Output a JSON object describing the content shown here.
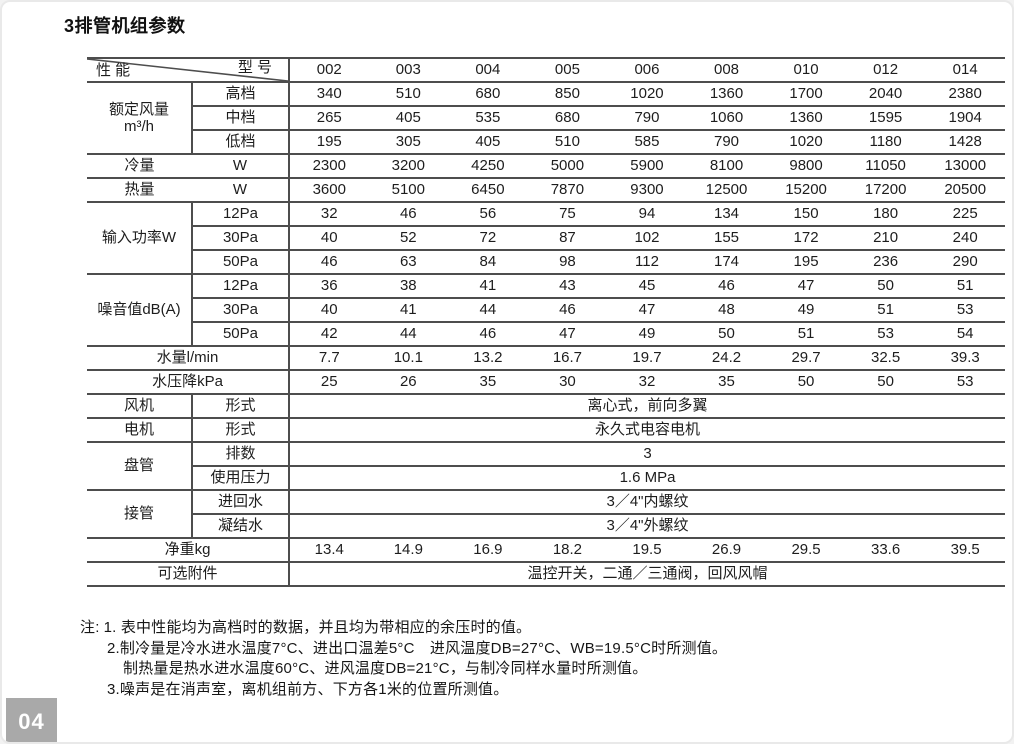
{
  "page": {
    "title": "3排管机组参数",
    "page_number": "04"
  },
  "colors": {
    "badge_bg": "#a9a9a9",
    "table_line": "#4d4d4d"
  },
  "table": {
    "corner": {
      "left": "性 能",
      "right": "型 号"
    },
    "models": [
      "002",
      "003",
      "004",
      "005",
      "006",
      "008",
      "010",
      "012",
      "014"
    ],
    "labels": {
      "airflow": "额定风量",
      "airflow_unit": "m³/h",
      "high": "高档",
      "mid": "中档",
      "low": "低档",
      "cooling": "冷量",
      "cooling_unit": "W",
      "heating": "热量",
      "heating_unit": "W",
      "input_power": "输入功率W",
      "power_pa12": "12Pa",
      "power_pa30": "30Pa",
      "power_pa50": "50Pa",
      "noise": "噪音值dB(A)",
      "noise_pa12": "12Pa",
      "noise_pa30": "30Pa",
      "noise_pa50": "50Pa",
      "water_flow": "水量l/min",
      "pressure_drop": "水压降kPa",
      "fan": "风机",
      "fan_form": "形式",
      "motor": "电机",
      "motor_form": "形式",
      "coil": "盘管",
      "coil_rows": "排数",
      "coil_pressure": "使用压力",
      "piping": "接管",
      "piping_inout": "进回水",
      "piping_condensate": "凝结水",
      "weight": "净重kg",
      "accessories": "可选附件"
    },
    "values": {
      "airflow_high": [
        "340",
        "510",
        "680",
        "850",
        "1020",
        "1360",
        "1700",
        "2040",
        "2380"
      ],
      "airflow_mid": [
        "265",
        "405",
        "535",
        "680",
        "790",
        "1060",
        "1360",
        "1595",
        "1904"
      ],
      "airflow_low": [
        "195",
        "305",
        "405",
        "510",
        "585",
        "790",
        "1020",
        "1180",
        "1428"
      ],
      "cooling": [
        "2300",
        "3200",
        "4250",
        "5000",
        "5900",
        "8100",
        "9800",
        "11050",
        "13000"
      ],
      "heating": [
        "3600",
        "5100",
        "6450",
        "7870",
        "9300",
        "12500",
        "15200",
        "17200",
        "20500"
      ],
      "power_12pa": [
        "32",
        "46",
        "56",
        "75",
        "94",
        "134",
        "150",
        "180",
        "225"
      ],
      "power_30pa": [
        "40",
        "52",
        "72",
        "87",
        "102",
        "155",
        "172",
        "210",
        "240"
      ],
      "power_50pa": [
        "46",
        "63",
        "84",
        "98",
        "112",
        "174",
        "195",
        "236",
        "290"
      ],
      "noise_12pa": [
        "36",
        "38",
        "41",
        "43",
        "45",
        "46",
        "47",
        "50",
        "51"
      ],
      "noise_30pa": [
        "40",
        "41",
        "44",
        "46",
        "47",
        "48",
        "49",
        "51",
        "53"
      ],
      "noise_50pa": [
        "42",
        "44",
        "46",
        "47",
        "49",
        "50",
        "51",
        "53",
        "54"
      ],
      "water_flow": [
        "7.7",
        "10.1",
        "13.2",
        "16.7",
        "19.7",
        "24.2",
        "29.7",
        "32.5",
        "39.3"
      ],
      "pressure_drop": [
        "25",
        "26",
        "35",
        "30",
        "32",
        "35",
        "50",
        "50",
        "53"
      ],
      "fan_type": "离心式，前向多翼",
      "motor_type": "永久式电容电机",
      "coil_rows": "3",
      "coil_pressure": "1.6 MPa",
      "piping_inout": "3／4\"内螺纹",
      "piping_condensate": "3／4\"外螺纹",
      "weight": [
        "13.4",
        "14.9",
        "16.9",
        "18.2",
        "19.5",
        "26.9",
        "29.5",
        "33.6",
        "39.5"
      ],
      "accessories": "温控开关，二通／三通阀，回风风帽"
    }
  },
  "notes": {
    "prefix": "注:",
    "lines": [
      "1. 表中性能均为高档时的数据，并且均为带相应的余压时的值。",
      "2.制冷量是冷水进水温度7°C、进出口温差5°C　进风温度DB=27°C、WB=19.5°C时所测值。",
      "制热量是热水进水温度60°C、进风温度DB=21°C，与制冷同样水量时所测值。",
      "3.噪声是在消声室，离机组前方、下方各1米的位置所测值。"
    ]
  }
}
